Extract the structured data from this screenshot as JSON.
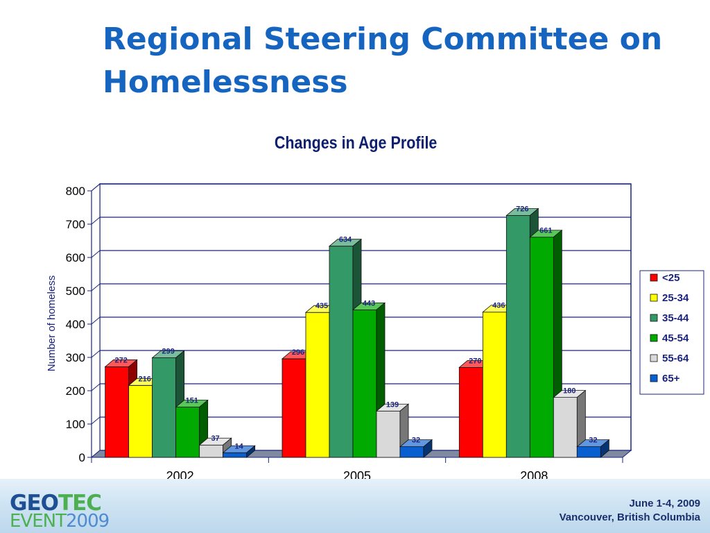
{
  "slide": {
    "title": "Regional Steering Committee on Homelessness"
  },
  "chart_data": {
    "type": "bar",
    "title": "Changes in Age Profile",
    "xlabel": "",
    "ylabel": "Number of homeless",
    "ylim": [
      0,
      800
    ],
    "yticks": [
      0,
      100,
      200,
      300,
      400,
      500,
      600,
      700,
      800
    ],
    "categories": [
      "2002",
      "2005",
      "2008"
    ],
    "series": [
      {
        "name": "<25",
        "color": "#ff0000",
        "values": [
          272,
          296,
          270
        ]
      },
      {
        "name": "25-34",
        "color": "#ffff00",
        "values": [
          216,
          435,
          436
        ]
      },
      {
        "name": "35-44",
        "color": "#339966",
        "values": [
          299,
          634,
          726
        ]
      },
      {
        "name": "45-54",
        "color": "#00aa00",
        "values": [
          151,
          443,
          661
        ]
      },
      {
        "name": "55-64",
        "color": "#d9d9d9",
        "values": [
          37,
          139,
          180
        ]
      },
      {
        "name": "65+",
        "color": "#0a5fd0",
        "values": [
          14,
          32,
          32
        ]
      }
    ],
    "legend": "right",
    "grid": true,
    "style": "3d"
  },
  "footer": {
    "logo": {
      "geo": "GEO",
      "tec": "TEC",
      "event": "EVENT",
      "year": "2009"
    },
    "dates": "June 1-4, 2009",
    "location": "Vancouver, British Columbia"
  }
}
